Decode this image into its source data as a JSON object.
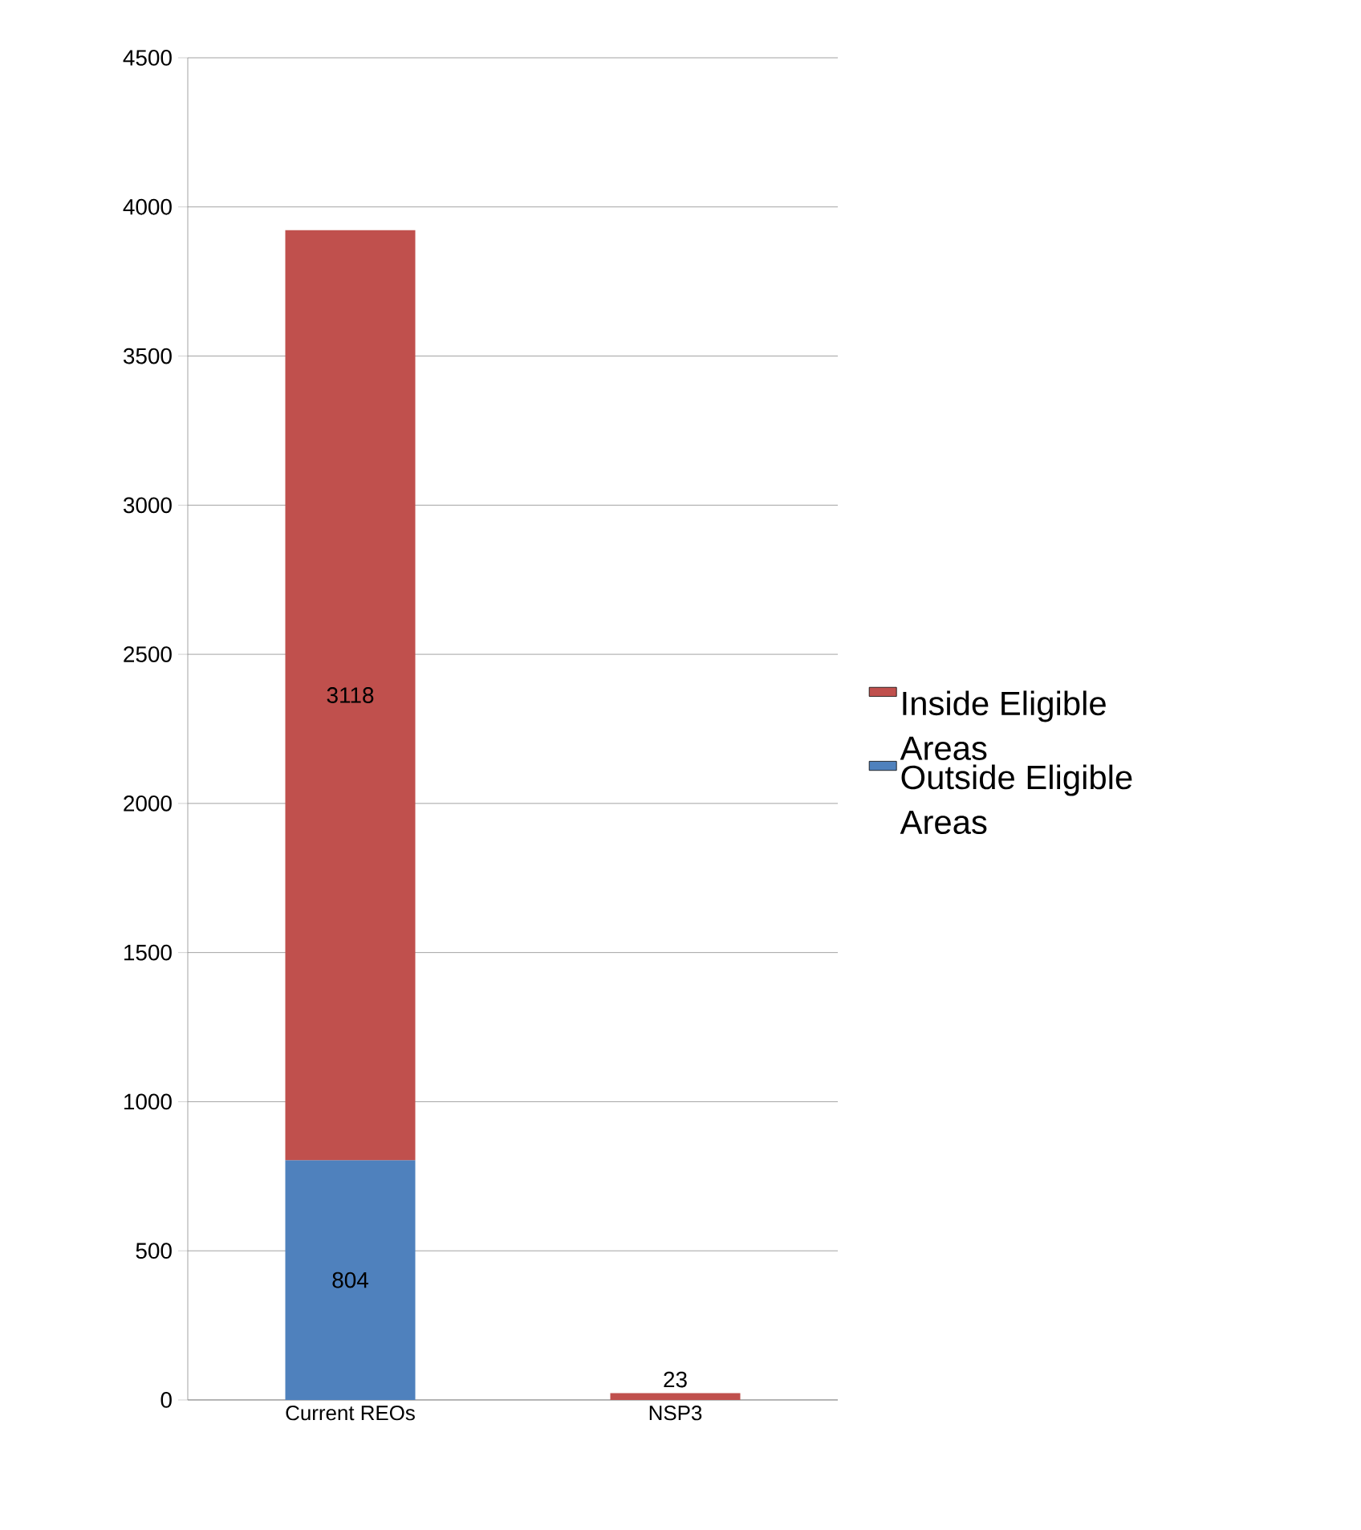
{
  "chart_data": {
    "type": "bar",
    "stacked": true,
    "categories": [
      "Current REOs",
      "NSP3"
    ],
    "series": [
      {
        "name": "Outside Eligible Areas",
        "color": "#4f81bd",
        "values": [
          804,
          null
        ]
      },
      {
        "name": "Inside Eligible Areas",
        "color": "#c0504d",
        "values": [
          3118,
          23
        ]
      }
    ],
    "ylim": [
      0,
      4500
    ],
    "yticks": [
      0,
      500,
      1000,
      1500,
      2000,
      2500,
      3000,
      3500,
      4000,
      4500
    ],
    "grid": "y",
    "legend": "right",
    "data_labels": true
  }
}
